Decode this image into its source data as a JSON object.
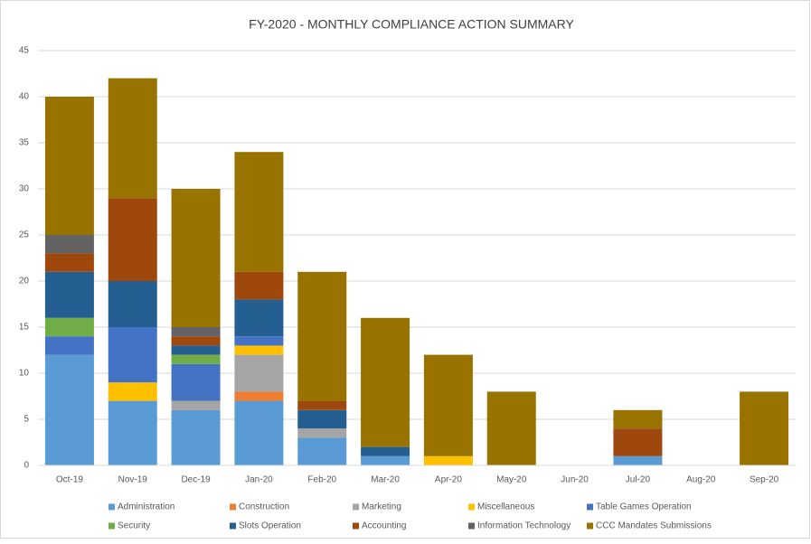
{
  "chart_data": {
    "type": "stacked_bar",
    "title": "FY-2020 - MONTHLY COMPLIANCE ACTION SUMMARY",
    "categories": [
      "Oct-19",
      "Nov-19",
      "Dec-19",
      "Jan-20",
      "Feb-20",
      "Mar-20",
      "Apr-20",
      "May-20",
      "Jun-20",
      "Jul-20",
      "Aug-20",
      "Sep-20"
    ],
    "ylim": [
      0,
      45
    ],
    "yticks": [
      0,
      5,
      10,
      15,
      20,
      25,
      30,
      35,
      40,
      45
    ],
    "grid": true,
    "legend": "bottom",
    "series": [
      {
        "name": "Administration",
        "color": "#5b9bd5",
        "values": [
          12,
          7,
          6,
          7,
          3,
          1,
          0,
          0,
          0,
          1,
          0,
          0
        ]
      },
      {
        "name": "Construction",
        "color": "#ed7d31",
        "values": [
          0,
          0,
          0,
          1,
          0,
          0,
          0,
          0,
          0,
          0,
          0,
          0
        ]
      },
      {
        "name": "Marketing",
        "color": "#a5a5a5",
        "values": [
          0,
          0,
          1,
          4,
          1,
          0,
          0,
          0,
          0,
          0,
          0,
          0
        ]
      },
      {
        "name": "Miscellaneous",
        "color": "#ffc000",
        "values": [
          0,
          2,
          0,
          1,
          0,
          0,
          1,
          0,
          0,
          0,
          0,
          0
        ]
      },
      {
        "name": "Table Games Operation",
        "color": "#4472c4",
        "values": [
          2,
          6,
          4,
          1,
          0,
          0,
          0,
          0,
          0,
          0,
          0,
          0
        ]
      },
      {
        "name": "Security",
        "color": "#70ad47",
        "values": [
          2,
          0,
          1,
          0,
          0,
          0,
          0,
          0,
          0,
          0,
          0,
          0
        ]
      },
      {
        "name": "Slots Operation",
        "color": "#255e91",
        "values": [
          5,
          5,
          1,
          4,
          2,
          1,
          0,
          0,
          0,
          0,
          0,
          0
        ]
      },
      {
        "name": "Accounting",
        "color": "#9e480e",
        "values": [
          2,
          9,
          1,
          3,
          1,
          0,
          0,
          0,
          0,
          3,
          0,
          0
        ]
      },
      {
        "name": "Information Technology",
        "color": "#636363",
        "values": [
          2,
          0,
          1,
          0,
          0,
          0,
          0,
          0,
          0,
          0,
          0,
          0
        ]
      },
      {
        "name": "CCC Mandates Submissions",
        "color": "#997300",
        "values": [
          15,
          13,
          15,
          13,
          14,
          14,
          11,
          8,
          0,
          2,
          0,
          8
        ]
      }
    ]
  }
}
